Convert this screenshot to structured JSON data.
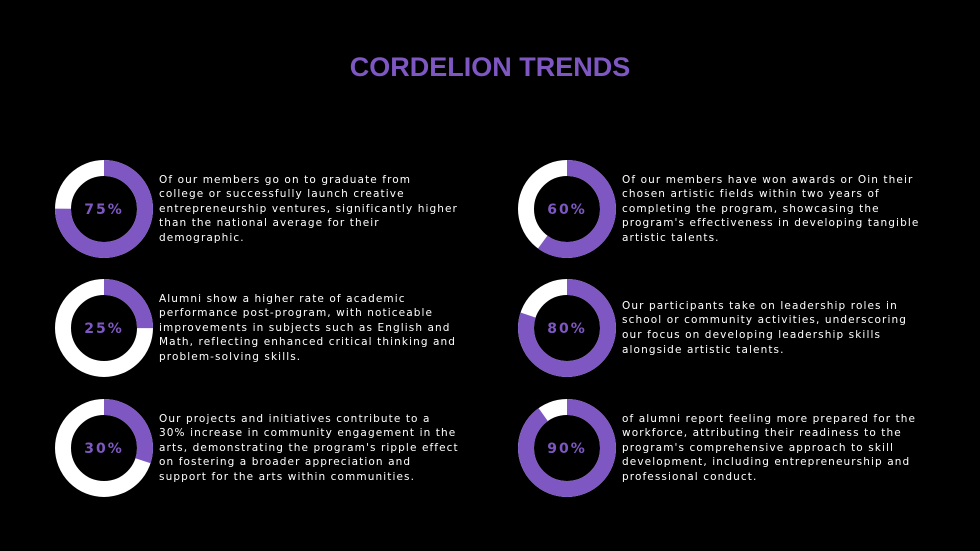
{
  "title": "CORDELION TRENDS",
  "items": [
    {
      "value": 75,
      "value_label": "75%",
      "text": "Of our members go on to graduate from college or successfully launch creative entrepreneurship ventures, significantly higher than the national average for their demographic."
    },
    {
      "value": 25,
      "value_label": "25%",
      "text": "Alumni show a higher rate of academic performance post-program, with noticeable improvements in subjects such as English and Math, reflecting enhanced critical thinking and problem-solving skills."
    },
    {
      "value": 30,
      "value_label": "30%",
      "text": "Our projects and initiatives contribute to a 30% increase in community engagement in the arts, demonstrating the program's ripple effect on fostering a broader appreciation and support for the arts within communities."
    },
    {
      "value": 60,
      "value_label": "60%",
      "text": "Of our members have won awards or Oin their chosen artistic fields within two years of completing the program, showcasing the program's effectiveness in developing tangible artistic talents."
    },
    {
      "value": 80,
      "value_label": "80%",
      "text": "Our participants take on leadership roles in school or community activities, underscoring our focus on developing leadership skills alongside artistic talents."
    },
    {
      "value": 90,
      "value_label": "90%",
      "text": "of alumni report feeling more prepared for the workforce, attributing their readiness to the program's comprehensive approach to skill development, including entrepreneurship and professional conduct."
    }
  ]
}
